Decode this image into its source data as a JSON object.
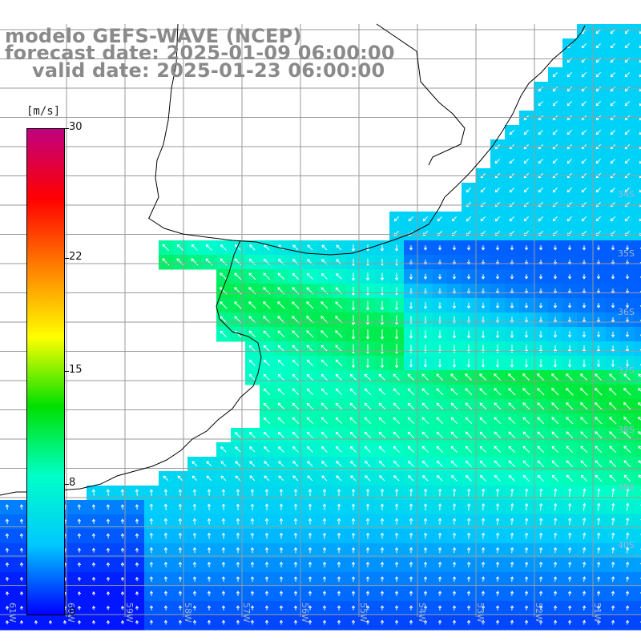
{
  "title": {
    "model": "modelo GEFS-WAVE (NCEP)",
    "forecast": "forecast date: 2025-01-09 06:00:00",
    "valid": "valid date: 2025-01-23 06:00:00"
  },
  "colorbar": {
    "unit": "[m/s]",
    "min": 0,
    "max": 30,
    "ticks": [
      "0",
      "8",
      "15",
      "22",
      "30"
    ],
    "tick_values": [
      0,
      8,
      15,
      22,
      30
    ],
    "colors": [
      "#0000ff",
      "#00c8ff",
      "#00ffc8",
      "#00e000",
      "#ffff00",
      "#ff8000",
      "#ff0000",
      "#c00080"
    ]
  },
  "map": {
    "variable": "wind speed and direction",
    "lon_labels": [
      "61W",
      "60W",
      "59W",
      "58W",
      "57W",
      "56W",
      "55W",
      "54W",
      "53W",
      "52W",
      "51W"
    ],
    "lat_labels": [
      "34S",
      "35S",
      "36S",
      "37S",
      "38S",
      "39S",
      "40S"
    ],
    "land_color": "#ffffff",
    "grid_color": "#9a9a9a"
  }
}
